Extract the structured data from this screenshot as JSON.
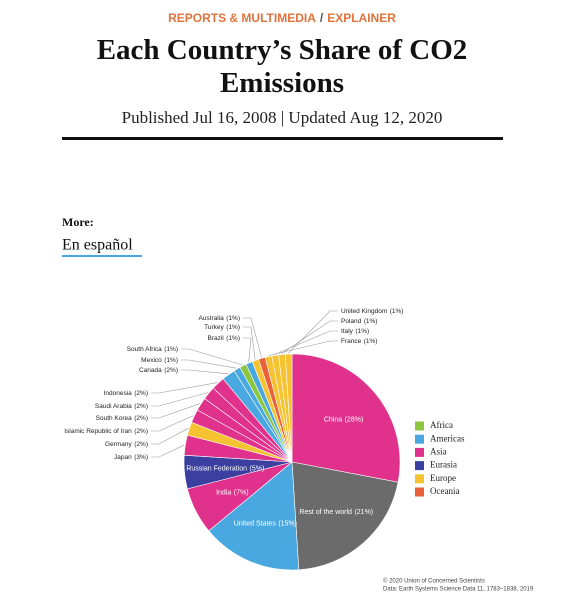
{
  "header": {
    "section": "REPORTS & MULTIMEDIA",
    "separator": "/",
    "kind": "EXPLAINER",
    "title": "Each Country’s Share of CO2 Emissions",
    "dates": "Published Jul 16, 2008 | Updated Aug 12, 2020"
  },
  "more": {
    "label": "More:",
    "link": "En español"
  },
  "chart_data": {
    "type": "pie",
    "categories": [
      "China",
      "Rest of the world",
      "United States",
      "India",
      "Russian Federation",
      "Japan",
      "Germany",
      "Islamic Republic of Iran",
      "South Korea",
      "Saudi Arabia",
      "Indonesia",
      "Canada",
      "Mexico",
      "South Africa",
      "Brazil",
      "Turkey",
      "Australia",
      "France",
      "Italy",
      "Poland",
      "United Kingdom"
    ],
    "values": [
      28,
      21,
      15,
      7,
      5,
      3,
      2,
      2,
      2,
      2,
      2,
      2,
      1,
      1,
      1,
      1,
      1,
      1,
      1,
      1,
      1
    ],
    "value_labels": [
      "(28%)",
      "(21%)",
      "(15%)",
      "(7%)",
      "(5%)",
      "(3%)",
      "(2%)",
      "(2%)",
      "(2%)",
      "(2%)",
      "(2%)",
      "(2%)",
      "(1%)",
      "(1%)",
      "(1%)",
      "(1%)",
      "(1%)",
      "(1%)",
      "(1%)",
      "(1%)",
      "(1%)"
    ],
    "colors": [
      "#e0318c",
      "#6b6b6b",
      "#4aa8e0",
      "#e0318c",
      "#3a3fa0",
      "#e0318c",
      "#f5c332",
      "#e0318c",
      "#e0318c",
      "#e0318c",
      "#e0318c",
      "#4aa8e0",
      "#4aa8e0",
      "#8dc63f",
      "#4aa8e0",
      "#f5c332",
      "#e9603a",
      "#f5c332",
      "#f5c332",
      "#f5c332",
      "#f5c332"
    ],
    "legend": [
      {
        "name": "Africa",
        "color": "#8dc63f"
      },
      {
        "name": "Americas",
        "color": "#4aa8e0"
      },
      {
        "name": "Asia",
        "color": "#e0318c"
      },
      {
        "name": "Eurasia",
        "color": "#3a3fa0"
      },
      {
        "name": "Europe",
        "color": "#f5c332"
      },
      {
        "name": "Oceania",
        "color": "#e9603a"
      }
    ],
    "credits": [
      "© 2020 Union of Concerned Scientists",
      "Data: Earth Systems Science Data 11, 1783–1838, 2019"
    ]
  }
}
